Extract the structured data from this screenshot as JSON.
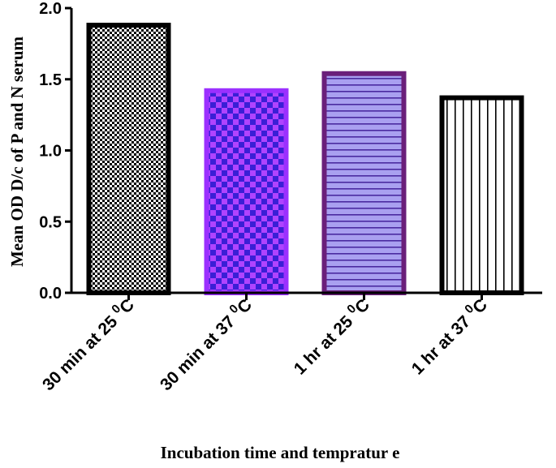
{
  "chart_data": {
    "type": "bar",
    "title": "",
    "xlabel": "Incubation time and tempratur e",
    "ylabel": "Mean OD D/c of P and N serum",
    "ylim": [
      0,
      2.0
    ],
    "yticks": [
      "0.0",
      "0.5",
      "1.0",
      "1.5",
      "2.0"
    ],
    "categories": [
      {
        "main": "30 min at 25",
        "sup": "0",
        "unit": "C"
      },
      {
        "main": "30 min at 37",
        "sup": "0",
        "unit": "C"
      },
      {
        "main": "1 hr at 25",
        "sup": "0",
        "unit": "C"
      },
      {
        "main": "1 hr at 37",
        "sup": "0",
        "unit": "C"
      }
    ],
    "values": [
      1.88,
      1.42,
      1.54,
      1.37
    ],
    "bar_styles": [
      {
        "pattern": "checker-fine",
        "fill": "#ffffff",
        "mark": "#000000",
        "stroke": "#000000"
      },
      {
        "pattern": "checker",
        "fill": "#3a1fd6",
        "mark": "#b043ff",
        "stroke": "#9b30ff"
      },
      {
        "pattern": "hlines",
        "fill": "#a9a0f0",
        "mark": "#4a2aa0",
        "stroke": "#6a1f7a"
      },
      {
        "pattern": "vlines",
        "fill": "#ffffff",
        "mark": "#000000",
        "stroke": "#000000"
      }
    ]
  }
}
